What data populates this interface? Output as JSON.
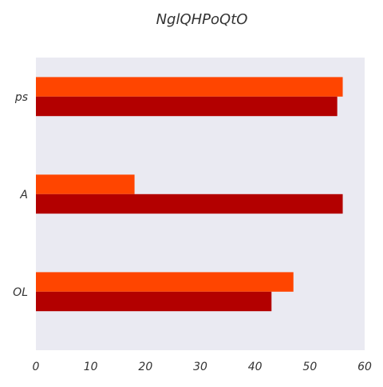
{
  "chart_data": {
    "type": "bar",
    "orientation": "horizontal",
    "title": "NglQHPoQtO",
    "xlabel": "",
    "ylabel": "",
    "categories": [
      "ps",
      "A",
      "OL"
    ],
    "series": [
      {
        "color": "#ff4500",
        "values": [
          56,
          18,
          47
        ]
      },
      {
        "color": "#b30000",
        "values": [
          55,
          56,
          43
        ]
      }
    ],
    "xlim": [
      0,
      60
    ],
    "x_ticks": [
      0,
      10,
      20,
      30,
      40,
      50,
      60
    ],
    "grid": false,
    "legend": "none",
    "plot_background": "#eaeaf2"
  }
}
